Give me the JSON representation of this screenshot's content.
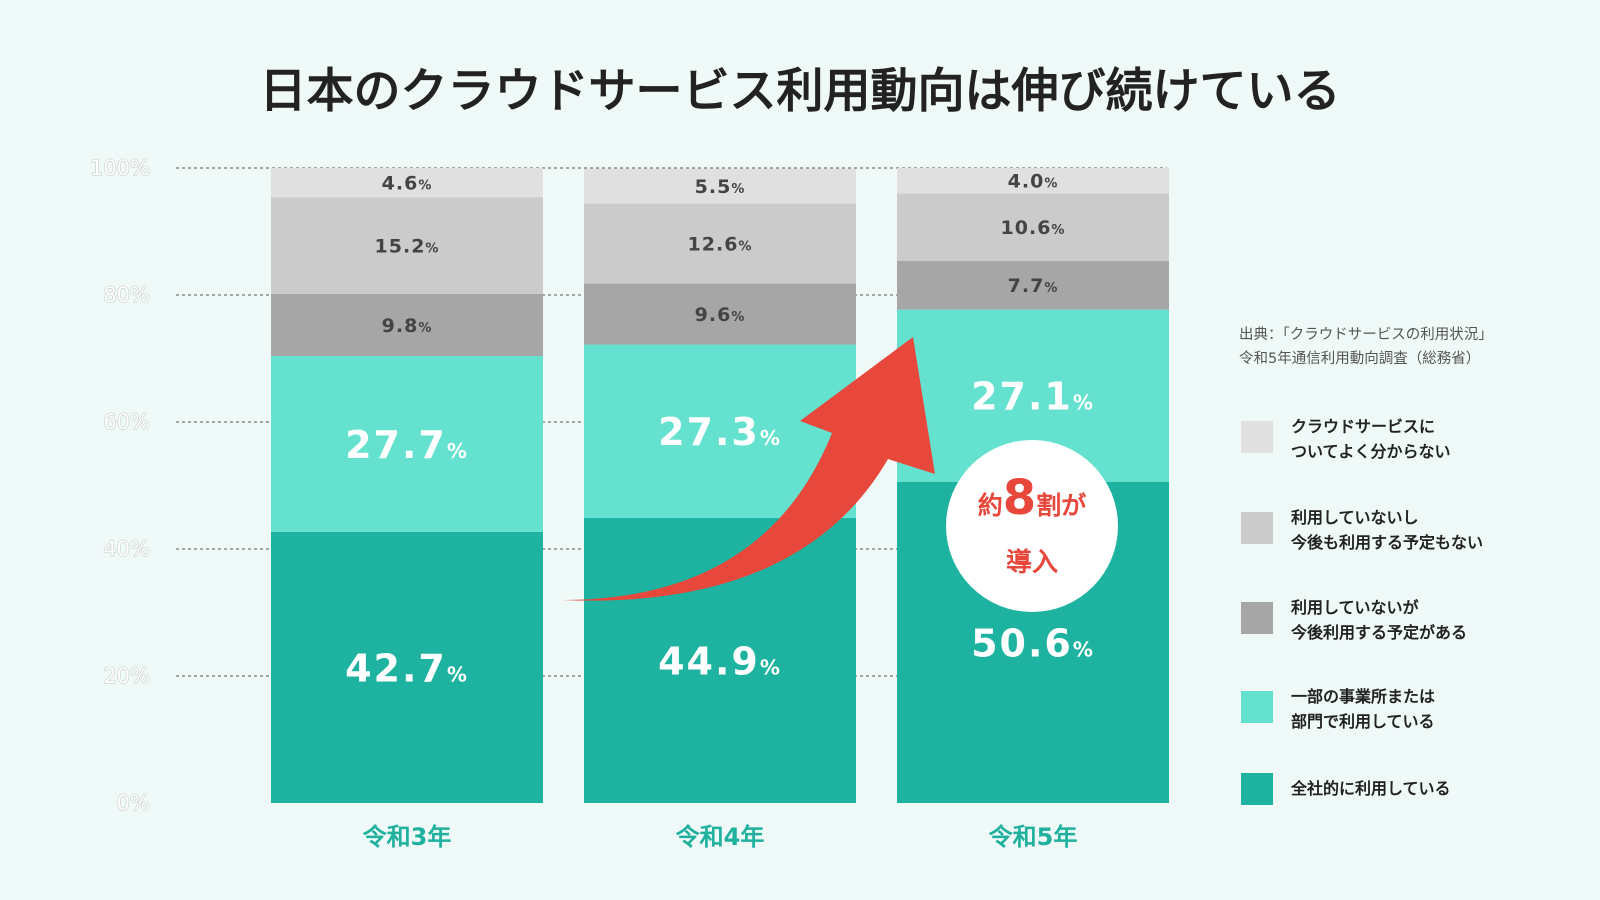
{
  "title": "日本のクラウドサービス利用動向は伸び続けている",
  "source": {
    "line1": "出典：「クラウドサービスの利用状況」",
    "line2": "令和5年通信利用動向調査（総務省）"
  },
  "badge": {
    "prefix": "約",
    "number": "8",
    "suffix": "割が",
    "line2": "導入"
  },
  "colors": {
    "background": "#eff9f7",
    "accent_red": "#e8473b",
    "category_label": "#1fb09e"
  },
  "chart_data": {
    "type": "bar",
    "stacked": true,
    "title": "日本のクラウドサービス利用動向は伸び続けている",
    "xlabel": "",
    "ylabel": "",
    "ylim": [
      0,
      100
    ],
    "y_ticks": [
      "0%",
      "20%",
      "40%",
      "60%",
      "80%",
      "100%"
    ],
    "grid": "dashed horizontal",
    "legend_position": "right",
    "categories": [
      "令和3年",
      "令和4年",
      "令和5年"
    ],
    "series": [
      {
        "name": "全社的に利用している",
        "color": "#1db3a0",
        "values": [
          42.7,
          44.9,
          50.6
        ]
      },
      {
        "name": "一部の事業所または部門で利用している",
        "color": "#64e2cf",
        "values": [
          27.7,
          27.3,
          27.1
        ]
      },
      {
        "name": "利用していないが今後利用する予定がある",
        "color": "#a6a6a6",
        "values": [
          9.8,
          9.6,
          7.7
        ]
      },
      {
        "name": "利用していないし今後も利用する予定もない",
        "color": "#cbcbcb",
        "values": [
          15.2,
          12.6,
          10.6
        ]
      },
      {
        "name": "クラウドサービスについてよく分からない",
        "color": "#e0e0e0",
        "values": [
          4.6,
          5.5,
          4.0
        ]
      }
    ]
  },
  "legend": [
    {
      "lines": [
        "クラウドサービスに",
        "ついてよく分からない"
      ],
      "color": "#e0e0e0"
    },
    {
      "lines": [
        "利用していないし",
        "今後も利用する予定もない"
      ],
      "color": "#cbcbcb"
    },
    {
      "lines": [
        "利用していないが",
        "今後利用する予定がある"
      ],
      "color": "#a6a6a6"
    },
    {
      "lines": [
        "一部の事業所または",
        "部門で利用している"
      ],
      "color": "#64e2cf"
    },
    {
      "lines": [
        "全社的に利用している"
      ],
      "color": "#1db3a0"
    }
  ]
}
